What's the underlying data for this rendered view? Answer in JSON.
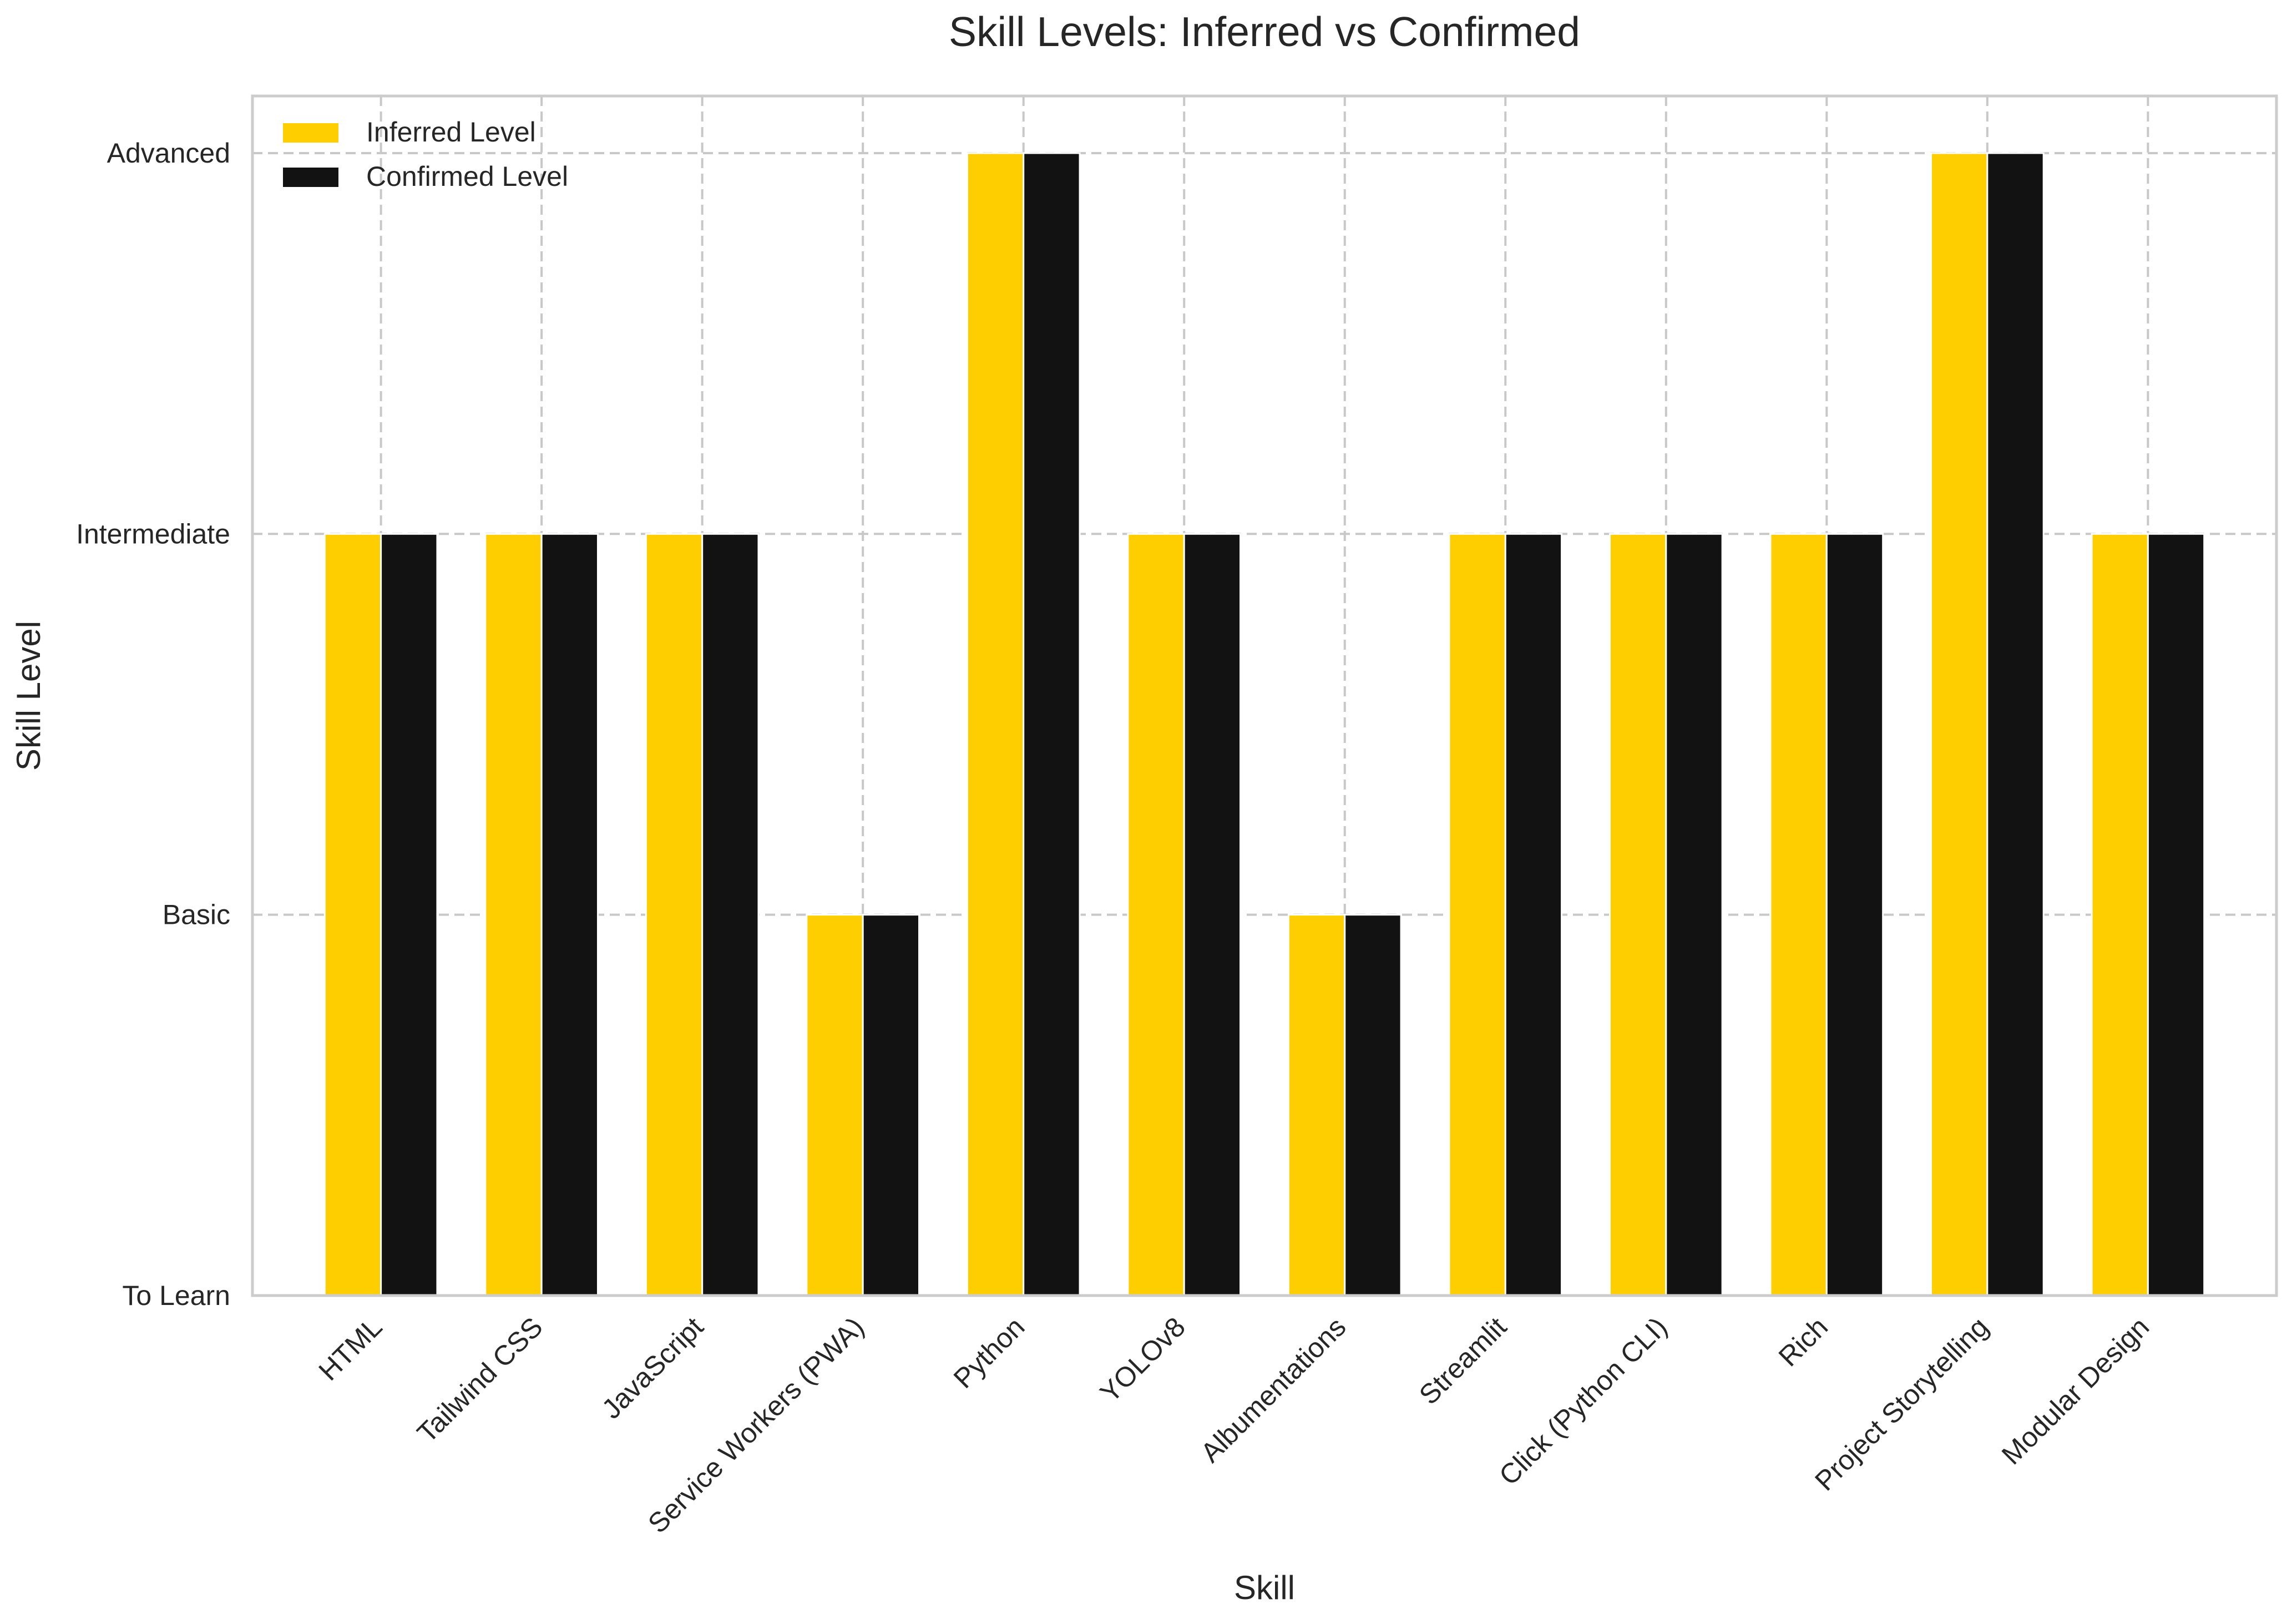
{
  "chart_data": {
    "type": "bar",
    "title": "Skill Levels: Inferred vs Confirmed",
    "xlabel": "Skill",
    "ylabel": "Skill Level",
    "categories": [
      "HTML",
      "Tailwind CSS",
      "JavaScript",
      "Service Workers (PWA)",
      "Python",
      "YOLOv8",
      "Albumentations",
      "Streamlit",
      "Click (Python CLI)",
      "Rich",
      "Project Storytelling",
      "Modular Design"
    ],
    "y_ticks": [
      {
        "value": 0,
        "label": "To Learn"
      },
      {
        "value": 1,
        "label": "Basic"
      },
      {
        "value": 2,
        "label": "Intermediate"
      },
      {
        "value": 3,
        "label": "Advanced"
      }
    ],
    "ylim": [
      0,
      3.15
    ],
    "series": [
      {
        "name": "Inferred Level",
        "color": "#FFCE00",
        "values": [
          2,
          2,
          2,
          1,
          3,
          2,
          1,
          2,
          2,
          2,
          3,
          2
        ]
      },
      {
        "name": "Confirmed Level",
        "color": "#121212",
        "values": [
          2,
          2,
          2,
          1,
          3,
          2,
          1,
          2,
          2,
          2,
          3,
          2
        ]
      }
    ],
    "grid": true,
    "legend_position": "top-left"
  }
}
